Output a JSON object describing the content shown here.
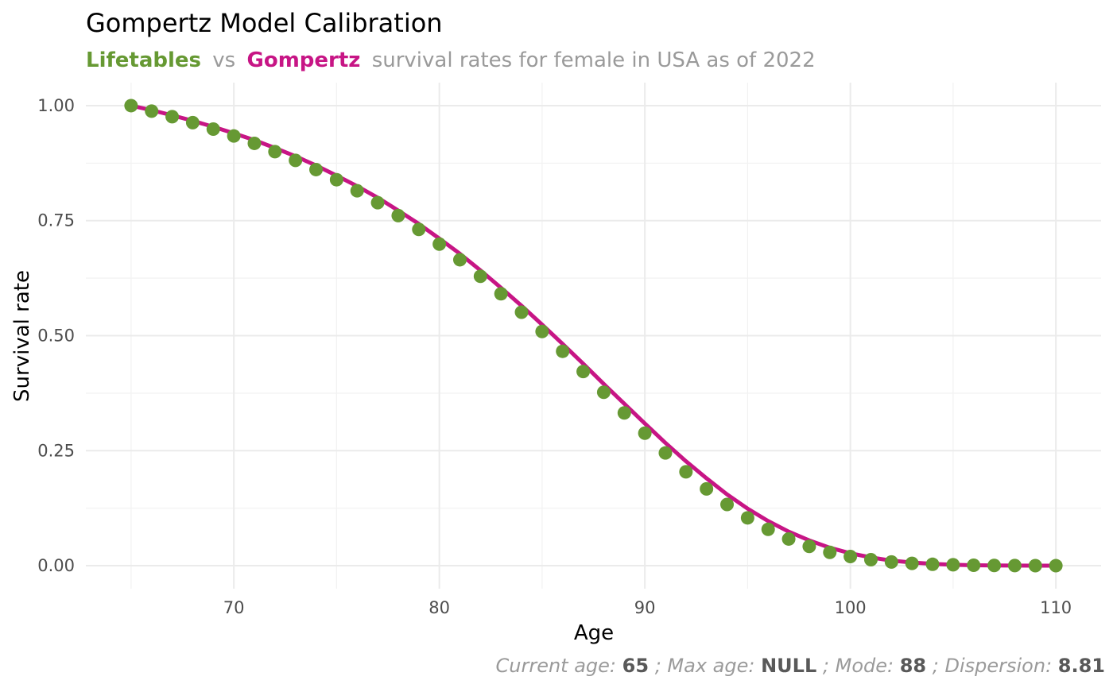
{
  "chart_data": {
    "type": "scatter",
    "title": "Gompertz Model Calibration",
    "subtitle": {
      "lifetables": "Lifetables",
      "vs": "vs",
      "gompertz": "Gompertz",
      "rest": "survival rates for female in USA as of 2022"
    },
    "xlabel": "Age",
    "ylabel": "Survival rate",
    "xlim": [
      62.8,
      112.2
    ],
    "ylim": [
      -0.05,
      1.05
    ],
    "x_ticks": [
      70,
      80,
      90,
      100,
      110
    ],
    "y_ticks": [
      0.0,
      0.25,
      0.5,
      0.75,
      1.0
    ],
    "x_tick_labels": [
      "70",
      "80",
      "90",
      "100",
      "110"
    ],
    "y_tick_labels": [
      "0.00",
      "0.25",
      "0.50",
      "0.75",
      "1.00"
    ],
    "grid": true,
    "colors": {
      "lifetables": "#669933",
      "gompertz": "#c71585"
    },
    "series": [
      {
        "name": "Lifetables",
        "style": "points",
        "x": [
          65,
          66,
          67,
          68,
          69,
          70,
          71,
          72,
          73,
          74,
          75,
          76,
          77,
          78,
          79,
          80,
          81,
          82,
          83,
          84,
          85,
          86,
          87,
          88,
          89,
          90,
          91,
          92,
          93,
          94,
          95,
          96,
          97,
          98,
          99,
          100,
          101,
          102,
          103,
          104,
          105,
          106,
          107,
          108,
          109,
          110
        ],
        "values": [
          1.0,
          0.988,
          0.976,
          0.963,
          0.949,
          0.934,
          0.918,
          0.9,
          0.881,
          0.861,
          0.839,
          0.815,
          0.789,
          0.761,
          0.731,
          0.699,
          0.665,
          0.629,
          0.591,
          0.551,
          0.509,
          0.466,
          0.422,
          0.377,
          0.332,
          0.288,
          0.245,
          0.204,
          0.167,
          0.133,
          0.104,
          0.079,
          0.058,
          0.042,
          0.029,
          0.02,
          0.013,
          0.008,
          0.005,
          0.003,
          0.002,
          0.001,
          0.0005,
          0.0003,
          0.0001,
          0.0
        ]
      },
      {
        "name": "Gompertz",
        "style": "line",
        "x": [
          65,
          66,
          67,
          68,
          69,
          70,
          71,
          72,
          73,
          74,
          75,
          76,
          77,
          78,
          79,
          80,
          81,
          82,
          83,
          84,
          85,
          86,
          87,
          88,
          89,
          90,
          91,
          92,
          93,
          94,
          95,
          96,
          97,
          98,
          99,
          100,
          101,
          102,
          103,
          104,
          105,
          106,
          107,
          108,
          109,
          110
        ],
        "values": [
          1.0,
          0.99,
          0.979,
          0.967,
          0.954,
          0.94,
          0.925,
          0.908,
          0.89,
          0.87,
          0.848,
          0.825,
          0.8,
          0.772,
          0.743,
          0.711,
          0.678,
          0.642,
          0.604,
          0.565,
          0.524,
          0.482,
          0.439,
          0.395,
          0.352,
          0.309,
          0.267,
          0.227,
          0.19,
          0.155,
          0.124,
          0.097,
          0.074,
          0.055,
          0.039,
          0.027,
          0.018,
          0.011,
          0.007,
          0.004,
          0.002,
          0.001,
          0.0005,
          0.0002,
          0.0001,
          0.0
        ]
      }
    ],
    "caption": {
      "current_age_label": "Current age: ",
      "current_age_value": "65",
      "max_age_label": "; Max age: ",
      "max_age_value": "NULL",
      "mode_label": "; Mode: ",
      "mode_value": "88",
      "dispersion_label": "; Dispersion: ",
      "dispersion_value": "8.81"
    }
  }
}
